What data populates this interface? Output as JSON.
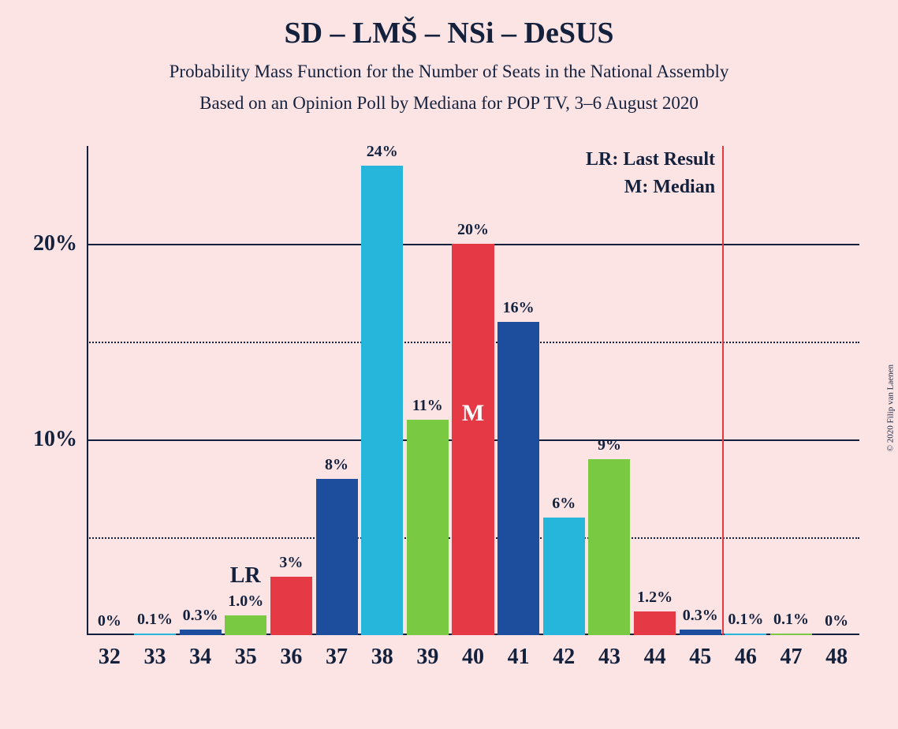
{
  "title": {
    "text": "SD – LMŠ – NSi – DeSUS",
    "fontsize": 38,
    "color": "#14213d"
  },
  "subtitle1": {
    "text": "Probability Mass Function for the Number of Seats in the National Assembly",
    "fontsize": 23,
    "color": "#14213d"
  },
  "subtitle2": {
    "text": "Based on an Opinion Poll by Mediana for POP TV, 3–6 August 2020",
    "fontsize": 23,
    "color": "#14213d"
  },
  "copyright": "© 2020 Filip van Laenen",
  "legend": {
    "lr": "LR: Last Result",
    "m": "M: Median",
    "fontsize": 24
  },
  "chart": {
    "type": "bar",
    "background_color": "#fce4e4",
    "axis_color": "#14213d",
    "text_color": "#14213d",
    "ylim": [
      0,
      25
    ],
    "ymax_data": 25,
    "yticks": [
      {
        "value": 5,
        "label": "",
        "style": "dotted"
      },
      {
        "value": 10,
        "label": "10%",
        "style": "solid"
      },
      {
        "value": 15,
        "label": "",
        "style": "dotted"
      },
      {
        "value": 20,
        "label": "20%",
        "style": "solid"
      }
    ],
    "ytick_fontsize": 28,
    "xtick_fontsize": 28,
    "bar_label_fontsize": 20,
    "bar_width": 0.92,
    "categories": [
      "32",
      "33",
      "34",
      "35",
      "36",
      "37",
      "38",
      "39",
      "40",
      "41",
      "42",
      "43",
      "44",
      "45",
      "46",
      "47",
      "48"
    ],
    "values": [
      0,
      0.1,
      0.3,
      1.0,
      3,
      8,
      24,
      11,
      20,
      16,
      6,
      9,
      1.2,
      0.3,
      0.1,
      0.1,
      0
    ],
    "display_labels": [
      "0%",
      "0.1%",
      "0.3%",
      "1.0%",
      "3%",
      "8%",
      "24%",
      "11%",
      "20%",
      "16%",
      "6%",
      "9%",
      "1.2%",
      "0.3%",
      "0.1%",
      "0.1%",
      "0%"
    ],
    "colors": [
      "#e63946",
      "#26b5db",
      "#1d4e9e",
      "#7ac943",
      "#e63946",
      "#1d4e9e",
      "#26b5db",
      "#7ac943",
      "#e63946",
      "#1d4e9e",
      "#26b5db",
      "#7ac943",
      "#e63946",
      "#1d4e9e",
      "#26b5db",
      "#7ac943",
      "#e63946"
    ],
    "median_index": 8,
    "median_label": "M",
    "median_label_fontsize": 30,
    "lr_position": 45.5,
    "lr_label": "LR",
    "lr_label_fontsize": 28,
    "lr_line_color": "#e63946"
  }
}
